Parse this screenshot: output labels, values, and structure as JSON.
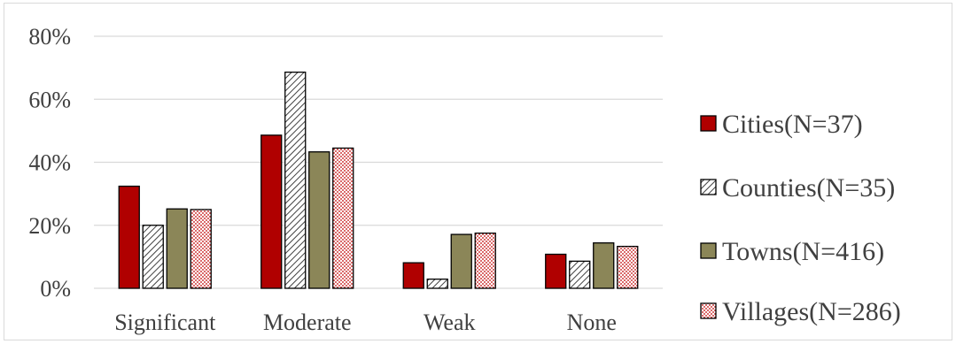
{
  "chart_data": {
    "type": "bar",
    "categories": [
      "Significant",
      "Moderate",
      "Weak",
      "None"
    ],
    "series": [
      {
        "name": "Cities(N=37)",
        "values": [
          32.4,
          48.6,
          8.1,
          10.8
        ],
        "fill": "#b00000",
        "pattern": "solid"
      },
      {
        "name": "Counties(N=35)",
        "values": [
          20.0,
          68.6,
          2.9,
          8.6
        ],
        "fill": "#ffffff",
        "pattern": "diagonal-hatch"
      },
      {
        "name": "Towns(N=416)",
        "values": [
          25.2,
          43.3,
          17.1,
          14.4
        ],
        "fill": "#8b8658",
        "pattern": "solid"
      },
      {
        "name": "Villages(N=286)",
        "values": [
          25.0,
          44.5,
          17.5,
          13.3
        ],
        "fill": "#ffffff",
        "pattern": "red-dots"
      }
    ],
    "y_ticks": [
      "0%",
      "20%",
      "40%",
      "60%",
      "80%"
    ],
    "ylim": [
      0,
      80
    ],
    "grid": true,
    "legend": "right",
    "colors": {
      "gridline": "#d9d9d9",
      "text": "#404040",
      "bar_outline": "#000000",
      "hatch": "#404040",
      "dots": "#c00000"
    }
  }
}
